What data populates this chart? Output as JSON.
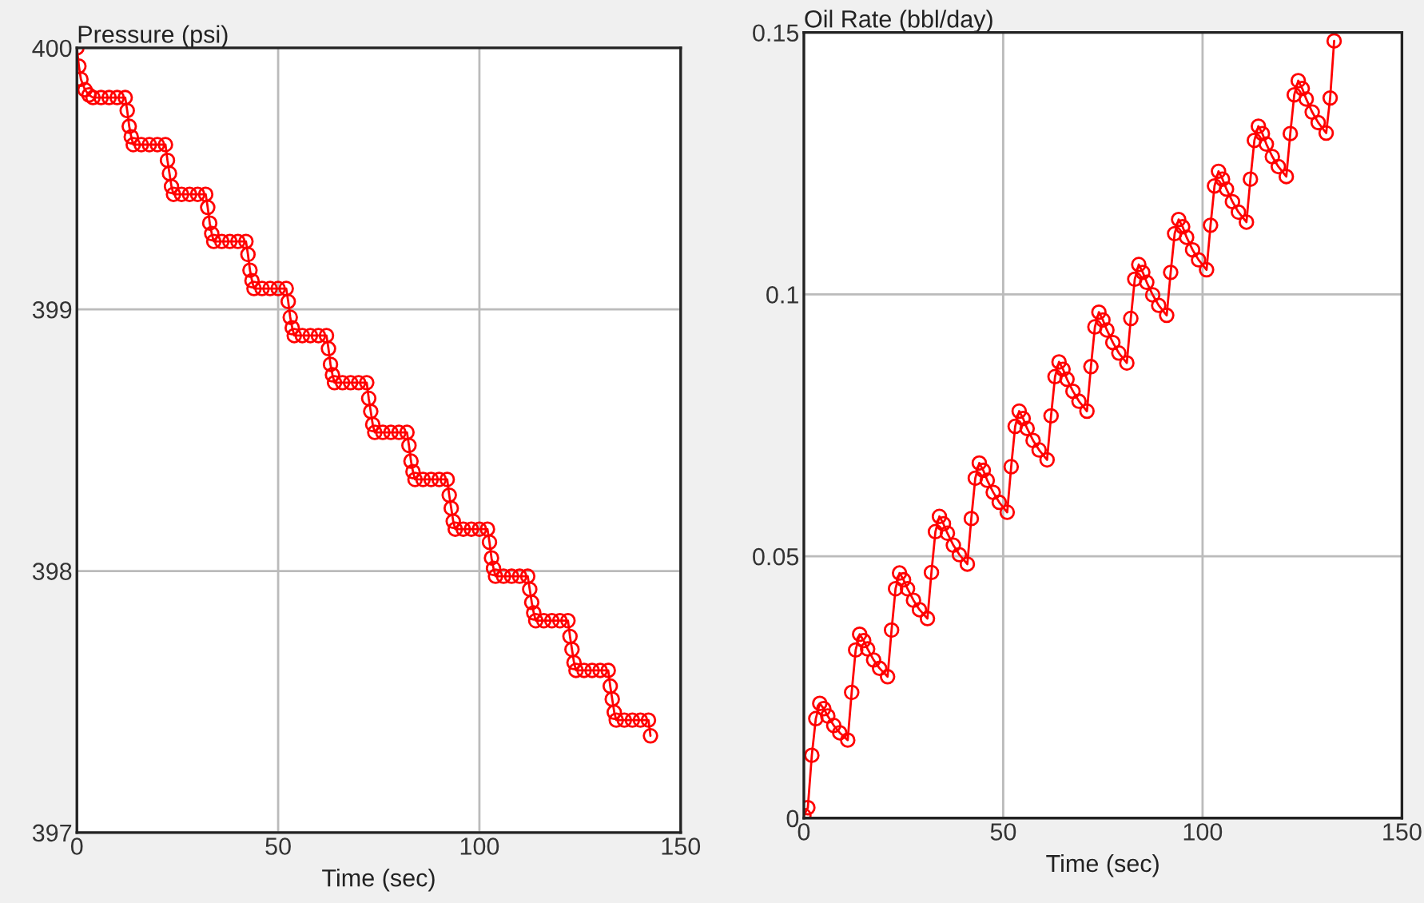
{
  "chart_data": [
    {
      "type": "line",
      "xlabel": "Time (sec)",
      "ylabel": "Pressure (psi)",
      "xlim": [
        0,
        150
      ],
      "ylim": [
        397,
        400
      ],
      "xticks": [
        0,
        50,
        100,
        150
      ],
      "yticks": [
        397,
        398,
        399,
        400
      ],
      "grid": true,
      "marker": "circle",
      "line_style": "solid",
      "x": [
        0,
        0.5,
        1,
        2,
        3,
        4,
        6,
        8,
        10,
        12,
        12.5,
        13,
        13.5,
        14,
        16,
        18,
        20,
        22,
        22.5,
        23,
        23.5,
        24,
        26,
        28,
        30,
        32,
        32.5,
        33,
        33.5,
        34,
        36,
        38,
        40,
        42,
        42.5,
        43,
        43.5,
        44,
        46,
        48,
        50,
        52,
        52.5,
        53,
        53.5,
        54,
        56,
        58,
        60,
        62,
        62.5,
        63,
        63.5,
        64,
        66,
        68,
        70,
        72,
        72.5,
        73,
        73.5,
        74,
        76,
        78,
        80,
        82,
        82.5,
        83,
        83.5,
        84,
        86,
        88,
        90,
        92,
        92.5,
        93,
        93.5,
        94,
        96,
        98,
        100,
        102,
        102.5,
        103,
        103.5,
        104,
        106,
        108,
        110,
        112,
        112.5,
        113,
        113.5,
        114,
        116,
        118,
        120,
        122,
        122.5,
        123,
        123.5,
        124,
        126,
        128,
        130,
        132,
        132.5,
        133,
        133.5,
        134,
        136,
        138,
        140,
        142,
        142.5
      ],
      "series": [
        {
          "color": "#ff0000",
          "values": [
            400,
            399.93,
            399.88,
            399.84,
            399.82,
            399.81,
            399.81,
            399.81,
            399.81,
            399.81,
            399.76,
            399.7,
            399.66,
            399.63,
            399.63,
            399.63,
            399.63,
            399.63,
            399.57,
            399.52,
            399.47,
            399.44,
            399.44,
            399.44,
            399.44,
            399.44,
            399.39,
            399.33,
            399.29,
            399.26,
            399.26,
            399.26,
            399.26,
            399.26,
            399.21,
            399.15,
            399.11,
            399.08,
            399.08,
            399.08,
            399.08,
            399.08,
            399.03,
            398.97,
            398.93,
            398.9,
            398.9,
            398.9,
            398.9,
            398.9,
            398.85,
            398.79,
            398.75,
            398.72,
            398.72,
            398.72,
            398.72,
            398.72,
            398.66,
            398.61,
            398.56,
            398.53,
            398.53,
            398.53,
            398.53,
            398.53,
            398.48,
            398.42,
            398.38,
            398.35,
            398.35,
            398.35,
            398.35,
            398.35,
            398.29,
            398.24,
            398.19,
            398.16,
            398.16,
            398.16,
            398.16,
            398.16,
            398.11,
            398.05,
            398.01,
            397.98,
            397.98,
            397.98,
            397.98,
            397.98,
            397.93,
            397.88,
            397.84,
            397.81,
            397.81,
            397.81,
            397.81,
            397.81,
            397.75,
            397.7,
            397.65,
            397.62,
            397.62,
            397.62,
            397.62,
            397.62,
            397.56,
            397.51,
            397.46,
            397.43,
            397.43,
            397.43,
            397.43,
            397.43,
            397.37
          ]
        }
      ]
    },
    {
      "type": "line",
      "xlabel": "Time (sec)",
      "ylabel": "Oil Rate (bbl/day)",
      "xlim": [
        0,
        150
      ],
      "ylim": [
        0,
        0.15
      ],
      "xticks": [
        0,
        50,
        100,
        150
      ],
      "yticks": [
        0,
        0.05,
        0.1,
        0.15
      ],
      "grid": true,
      "marker": "circle",
      "line_style": "solid",
      "x": [
        0,
        1,
        2,
        3,
        4,
        5,
        6,
        7.5,
        9,
        11,
        12,
        13,
        14,
        15,
        16,
        17.5,
        19,
        21,
        22,
        23,
        24,
        25,
        26,
        27.5,
        29,
        31,
        32,
        33,
        34,
        35,
        36,
        37.5,
        39,
        41,
        42,
        43,
        44,
        45,
        46,
        47.5,
        49,
        51,
        52,
        53,
        54,
        55,
        56,
        57.5,
        59,
        61,
        62,
        63,
        64,
        65,
        66,
        67.5,
        69,
        71,
        72,
        73,
        74,
        75,
        76,
        77.5,
        79,
        81,
        82,
        83,
        84,
        85,
        86,
        87.5,
        89,
        91,
        92,
        93,
        94,
        95,
        96,
        97.5,
        99,
        101,
        102,
        103,
        104,
        105,
        106,
        107.5,
        109,
        111,
        112,
        113,
        114,
        115,
        116,
        117.5,
        119,
        121,
        122,
        123,
        124,
        125,
        126,
        127.5,
        129,
        131,
        132,
        133
      ],
      "series": [
        {
          "color": "#ff0000",
          "values": [
            0.0005,
            0.002,
            0.012,
            0.019,
            0.0219,
            0.0209,
            0.0195,
            0.0177,
            0.0163,
            0.0149,
            0.024,
            0.0321,
            0.0351,
            0.0339,
            0.0323,
            0.0302,
            0.0286,
            0.027,
            0.0359,
            0.0438,
            0.0468,
            0.0455,
            0.0438,
            0.0416,
            0.0398,
            0.0381,
            0.0469,
            0.0547,
            0.0576,
            0.0562,
            0.0544,
            0.0521,
            0.0503,
            0.0485,
            0.0572,
            0.0649,
            0.0678,
            0.0664,
            0.0645,
            0.0622,
            0.0603,
            0.0584,
            0.0671,
            0.0748,
            0.0777,
            0.0763,
            0.0744,
            0.0721,
            0.0703,
            0.0684,
            0.0768,
            0.0843,
            0.0871,
            0.0857,
            0.0838,
            0.0815,
            0.0796,
            0.0777,
            0.0862,
            0.0938,
            0.0966,
            0.0951,
            0.0932,
            0.0908,
            0.0888,
            0.0869,
            0.0954,
            0.1029,
            0.1057,
            0.1042,
            0.1023,
            0.0999,
            0.0979,
            0.096,
            0.1042,
            0.1116,
            0.1143,
            0.1129,
            0.1109,
            0.1085,
            0.1066,
            0.1047,
            0.1132,
            0.1207,
            0.1235,
            0.122,
            0.1201,
            0.1177,
            0.1157,
            0.1138,
            0.122,
            0.1294,
            0.1321,
            0.1307,
            0.1287,
            0.1263,
            0.1244,
            0.1225,
            0.1307,
            0.1381,
            0.1408,
            0.1393,
            0.1373,
            0.1348,
            0.1328,
            0.1308,
            0.1375,
            0.1484
          ]
        }
      ]
    }
  ]
}
